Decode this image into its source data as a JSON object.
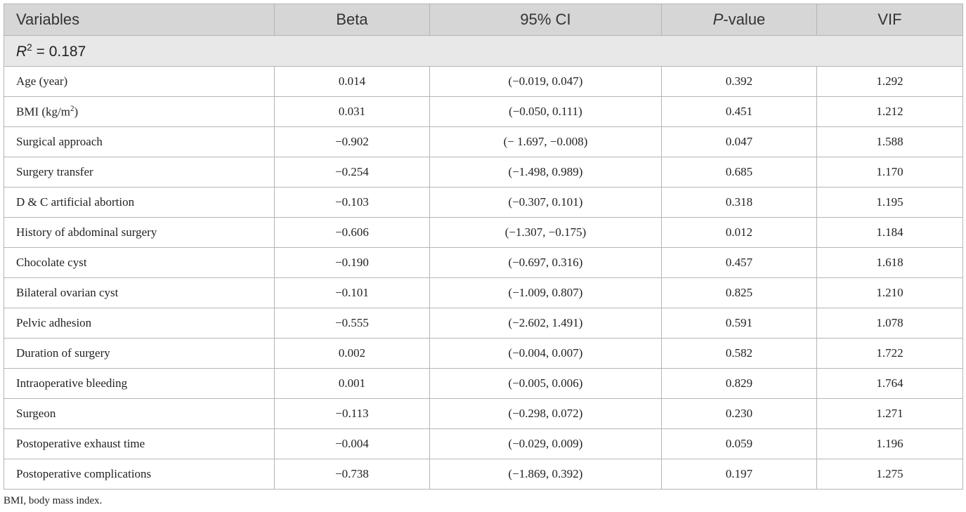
{
  "table": {
    "header": [
      "Variables",
      "Beta",
      "95% CI",
      {
        "italic": "P",
        "text": "-value"
      },
      "VIF"
    ],
    "fit": {
      "italic": "R",
      "sup": "2",
      "text": " = 0.187"
    },
    "rows": [
      [
        "Age (year)",
        "0.014",
        "(−0.019, 0.047)",
        "0.392",
        "1.292"
      ],
      [
        [
          "BMI (kg/m",
          "2",
          ")"
        ],
        "0.031",
        "(−0.050, 0.111)",
        "0.451",
        "1.212"
      ],
      [
        "Surgical approach",
        "−0.902",
        "(− 1.697, −0.008)",
        "0.047",
        "1.588"
      ],
      [
        "Surgery transfer",
        "−0.254",
        "(−1.498, 0.989)",
        "0.685",
        "1.170"
      ],
      [
        "D & C artificial abortion",
        "−0.103",
        "(−0.307, 0.101)",
        "0.318",
        "1.195"
      ],
      [
        "History of abdominal surgery",
        "−0.606",
        "(−1.307, −0.175)",
        "0.012",
        "1.184"
      ],
      [
        "Chocolate cyst",
        "−0.190",
        "(−0.697, 0.316)",
        "0.457",
        "1.618"
      ],
      [
        "Bilateral ovarian cyst",
        "−0.101",
        "(−1.009, 0.807)",
        "0.825",
        "1.210"
      ],
      [
        "Pelvic adhesion",
        "−0.555",
        "(−2.602, 1.491)",
        "0.591",
        "1.078"
      ],
      [
        "Duration of surgery",
        "0.002",
        "(−0.004, 0.007)",
        "0.582",
        "1.722"
      ],
      [
        "Intraoperative bleeding",
        "0.001",
        "(−0.005, 0.006)",
        "0.829",
        "1.764"
      ],
      [
        "Surgeon",
        "−0.113",
        "(−0.298, 0.072)",
        "0.230",
        "1.271"
      ],
      [
        "Postoperative exhaust time",
        "−0.004",
        "(−0.029, 0.009)",
        "0.059",
        "1.196"
      ],
      [
        "Postoperative complications",
        "−0.738",
        "(−1.869, 0.392)",
        "0.197",
        "1.275"
      ]
    ],
    "footnote": "BMI, body mass index."
  }
}
